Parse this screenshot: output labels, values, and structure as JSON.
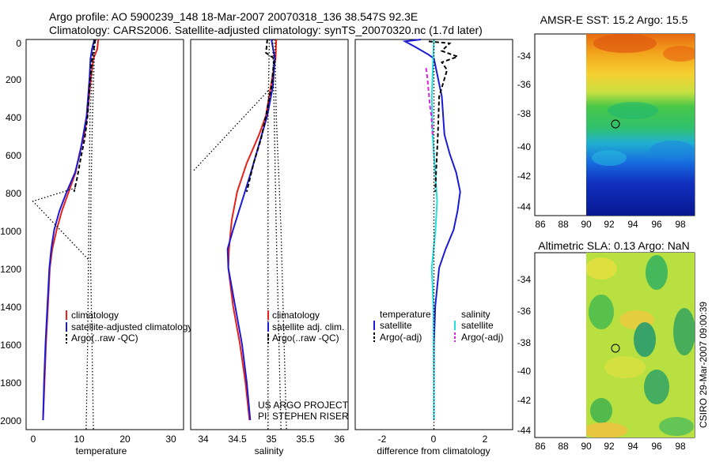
{
  "figure": {
    "title_line1": "Argo profile: AO 5900239_148 18-Mar-2007 20070318_136 38.547S 92.3E",
    "title_line2": "Climatology: CARS2006. Satellite-adjusted climatology: synTS_20070320.nc (1.7d later)",
    "stamp": "CSIRO 29-Mar-2007 09:00:39",
    "project_line1": "US ARGO PROJECT",
    "project_line2": "PI: STEPHEN RISER"
  },
  "colors": {
    "climatology": "#e8201a",
    "satellite": "#1a1ad8",
    "argo": "#000000",
    "salinity_sat": "#20e0e0",
    "salinity_argo": "#e020e0"
  },
  "chart_data": [
    {
      "id": "temperature",
      "type": "line",
      "xlabel": "temperature",
      "xlim": [
        -1,
        31.5
      ],
      "ylim": [
        2050,
        0
      ],
      "x_ticks": [
        "0",
        "10",
        "20",
        "30"
      ],
      "y_ticks": [
        "0",
        "200",
        "400",
        "600",
        "800",
        "1000",
        "1200",
        "1400",
        "1600",
        "1800",
        "2000"
      ],
      "legend": [
        "climatology",
        "satellite-adjusted climatology",
        "Argo(..raw -QC)"
      ],
      "series": [
        {
          "name": "climatology",
          "style": "solid",
          "color_key": "climatology",
          "points": [
            [
              13.9,
              0
            ],
            [
              13.7,
              50
            ],
            [
              12.9,
              100
            ],
            [
              12.4,
              200
            ],
            [
              12.0,
              300
            ],
            [
              11.6,
              400
            ],
            [
              11.0,
              500
            ],
            [
              10.0,
              600
            ],
            [
              9.2,
              700
            ],
            [
              7.8,
              800
            ],
            [
              6.4,
              900
            ],
            [
              5.3,
              1000
            ],
            [
              4.4,
              1100
            ],
            [
              3.9,
              1200
            ],
            [
              3.5,
              1400
            ],
            [
              3.1,
              1600
            ],
            [
              2.8,
              1800
            ],
            [
              2.5,
              2000
            ]
          ]
        },
        {
          "name": "satellite-adjusted climatology",
          "style": "solid",
          "color_key": "satellite",
          "points": [
            [
              13.1,
              0
            ],
            [
              12.6,
              50
            ],
            [
              12.3,
              100
            ],
            [
              12.1,
              200
            ],
            [
              11.8,
              300
            ],
            [
              11.5,
              400
            ],
            [
              10.8,
              500
            ],
            [
              10.1,
              600
            ],
            [
              9.1,
              700
            ],
            [
              7.4,
              800
            ],
            [
              5.9,
              900
            ],
            [
              4.8,
              1000
            ],
            [
              4.2,
              1100
            ],
            [
              3.8,
              1200
            ],
            [
              3.4,
              1400
            ],
            [
              3.0,
              1600
            ],
            [
              2.7,
              1800
            ],
            [
              2.5,
              2000
            ]
          ]
        },
        {
          "name": "Argo(..raw -QC)",
          "style": "dashed",
          "color_key": "argo",
          "points": [
            [
              13.3,
              0
            ],
            [
              12.9,
              60
            ],
            [
              12.5,
              120
            ],
            [
              12.1,
              250
            ],
            [
              11.7,
              400
            ],
            [
              11.1,
              520
            ],
            [
              10.3,
              620
            ],
            [
              9.6,
              720
            ],
            [
              8.9,
              800
            ]
          ]
        },
        {
          "name": "raw-dotted-1",
          "style": "dotted",
          "color_key": "argo",
          "points": [
            [
              13.0,
              0
            ],
            [
              12.2,
              400
            ],
            [
              12.0,
              800
            ],
            [
              11.9,
              1100
            ],
            [
              11.7,
              1600
            ],
            [
              11.4,
              2050
            ]
          ]
        },
        {
          "name": "raw-dotted-2",
          "style": "dotted",
          "color_key": "argo",
          "points": [
            [
              13.2,
              0
            ],
            [
              12.7,
              400
            ],
            [
              12.4,
              800
            ],
            [
              12.3,
              1150
            ],
            [
              12.6,
              1600
            ],
            [
              12.9,
              2050
            ]
          ]
        },
        {
          "name": "raw-dotted-spike",
          "style": "dotted",
          "color_key": "argo",
          "points": [
            [
              9.2,
              780
            ],
            [
              0.4,
              850
            ],
            [
              12.0,
              1160
            ]
          ]
        }
      ]
    },
    {
      "id": "salinity",
      "type": "line",
      "xlabel": "salinity",
      "xlim": [
        33.8,
        36.1
      ],
      "ylim": [
        2050,
        0
      ],
      "x_ticks": [
        "34",
        "34.5",
        "35",
        "35.5",
        "36"
      ],
      "legend": [
        "climatology",
        "satellite adj. clim.",
        "Argo(..raw -QC)"
      ],
      "series": [
        {
          "name": "climatology",
          "style": "solid",
          "color_key": "climatology",
          "points": [
            [
              35.05,
              0
            ],
            [
              35.04,
              100
            ],
            [
              34.97,
              250
            ],
            [
              34.9,
              400
            ],
            [
              34.8,
              500
            ],
            [
              34.62,
              650
            ],
            [
              34.48,
              800
            ],
            [
              34.4,
              950
            ],
            [
              34.36,
              1100
            ],
            [
              34.35,
              1200
            ],
            [
              34.42,
              1400
            ],
            [
              34.52,
              1600
            ],
            [
              34.6,
              1800
            ],
            [
              34.66,
              2000
            ]
          ]
        },
        {
          "name": "satellite adj. clim.",
          "style": "solid",
          "color_key": "satellite",
          "points": [
            [
              34.98,
              0
            ],
            [
              35.03,
              100
            ],
            [
              35.0,
              250
            ],
            [
              34.92,
              400
            ],
            [
              34.8,
              550
            ],
            [
              34.68,
              700
            ],
            [
              34.55,
              850
            ],
            [
              34.42,
              1000
            ],
            [
              34.34,
              1100
            ],
            [
              34.35,
              1200
            ],
            [
              34.45,
              1400
            ],
            [
              34.55,
              1600
            ],
            [
              34.62,
              1800
            ],
            [
              34.67,
              2000
            ]
          ]
        },
        {
          "name": "Argo(..raw -QC)",
          "style": "dashed",
          "color_key": "argo",
          "points": [
            [
              34.92,
              0
            ],
            [
              34.9,
              70
            ],
            [
              35.02,
              100
            ],
            [
              34.98,
              250
            ],
            [
              34.9,
              400
            ],
            [
              34.83,
              520
            ],
            [
              34.72,
              650
            ],
            [
              34.62,
              800
            ]
          ]
        },
        {
          "name": "raw-dotted-1",
          "style": "dotted",
          "color_key": "argo",
          "points": [
            [
              34.95,
              0
            ],
            [
              34.93,
              400
            ],
            [
              34.93,
              1000
            ],
            [
              34.93,
              2050
            ]
          ]
        },
        {
          "name": "raw-dotted-2",
          "style": "dotted",
          "color_key": "argo",
          "points": [
            [
              35.03,
              0
            ],
            [
              35.05,
              400
            ],
            [
              35.12,
              1000
            ],
            [
              35.2,
              2050
            ]
          ]
        },
        {
          "name": "raw-dotted-3",
          "style": "dotted",
          "color_key": "argo",
          "points": [
            [
              35.0,
              0
            ],
            [
              35.02,
              400
            ],
            [
              35.05,
              1000
            ],
            [
              35.12,
              2050
            ]
          ]
        },
        {
          "name": "raw-dotted-spike",
          "style": "dotted",
          "color_key": "argo",
          "points": [
            [
              34.93,
              270
            ],
            [
              33.84,
              690
            ]
          ]
        }
      ]
    },
    {
      "id": "difference",
      "type": "line",
      "xlabel": "difference from climatology",
      "xlim": [
        -3.0,
        3.0
      ],
      "ylim": [
        2050,
        0
      ],
      "x_ticks": [
        "-2",
        "0",
        "2"
      ],
      "legend_headers": [
        "temperature",
        "salinity"
      ],
      "legend": [
        "satellite",
        "Argo(-adj)",
        "satellite",
        "Argo(-adj)"
      ],
      "series": [
        {
          "name": "temperature satellite",
          "style": "solid",
          "color_key": "satellite",
          "points": [
            [
              -0.5,
              0
            ],
            [
              -1.1,
              10
            ],
            [
              -0.7,
              40
            ],
            [
              -0.2,
              80
            ],
            [
              0.0,
              100
            ],
            [
              0.3,
              300
            ],
            [
              0.4,
              500
            ],
            [
              0.6,
              600
            ],
            [
              0.85,
              700
            ],
            [
              1.0,
              800
            ],
            [
              0.9,
              900
            ],
            [
              0.75,
              1000
            ],
            [
              0.45,
              1100
            ],
            [
              0.2,
              1200
            ],
            [
              0.05,
              1400
            ],
            [
              0.0,
              1600
            ],
            [
              0.0,
              1800
            ],
            [
              0.0,
              2000
            ]
          ]
        },
        {
          "name": "salinity satellite",
          "style": "solid",
          "color_key": "salinity_sat",
          "points": [
            [
              0.0,
              0
            ],
            [
              -0.08,
              300
            ],
            [
              -0.05,
              500
            ],
            [
              0.05,
              700
            ],
            [
              0.12,
              850
            ],
            [
              0.06,
              1000
            ],
            [
              -0.08,
              1200
            ],
            [
              -0.02,
              1400
            ],
            [
              0.0,
              1800
            ],
            [
              0.0,
              2000
            ]
          ]
        },
        {
          "name": "temperature Argo(-adj)",
          "style": "dashed",
          "color_key": "argo",
          "points": [
            [
              -0.2,
              10
            ],
            [
              0.6,
              20
            ],
            [
              0.3,
              60
            ],
            [
              0.9,
              90
            ],
            [
              0.3,
              120
            ],
            [
              0.5,
              160
            ],
            [
              0.2,
              300
            ],
            [
              0.15,
              500
            ],
            [
              0.08,
              700
            ],
            [
              0.05,
              800
            ]
          ]
        },
        {
          "name": "salinity Argo(-adj)",
          "style": "dashed",
          "color_key": "salinity_argo",
          "points": [
            [
              -0.3,
              150
            ],
            [
              -0.25,
              200
            ],
            [
              -0.15,
              350
            ],
            [
              -0.1,
              400
            ],
            [
              -0.05,
              500
            ]
          ]
        },
        {
          "name": "zero line",
          "style": "dotted",
          "color_key": "argo",
          "points": [
            [
              0.0,
              0
            ],
            [
              0.0,
              2050
            ]
          ]
        }
      ]
    }
  ],
  "maps": [
    {
      "title": "AMSR-E SST: 15.2 Argo: 15.5",
      "x_ticks": [
        "86",
        "88",
        "90",
        "92",
        "94",
        "96",
        "98"
      ],
      "y_ticks": [
        "-34",
        "-36",
        "-38",
        "-40",
        "-42",
        "-44"
      ],
      "marker": {
        "lon": 92.3,
        "lat": -38.547
      }
    },
    {
      "title": "Altimetric SLA: 0.13 Argo: NaN",
      "x_ticks": [
        "86",
        "88",
        "90",
        "92",
        "94",
        "96",
        "98"
      ],
      "y_ticks": [
        "-34",
        "-36",
        "-38",
        "-40",
        "-42",
        "-44"
      ],
      "marker": {
        "lon": 92.3,
        "lat": -38.547
      }
    }
  ]
}
